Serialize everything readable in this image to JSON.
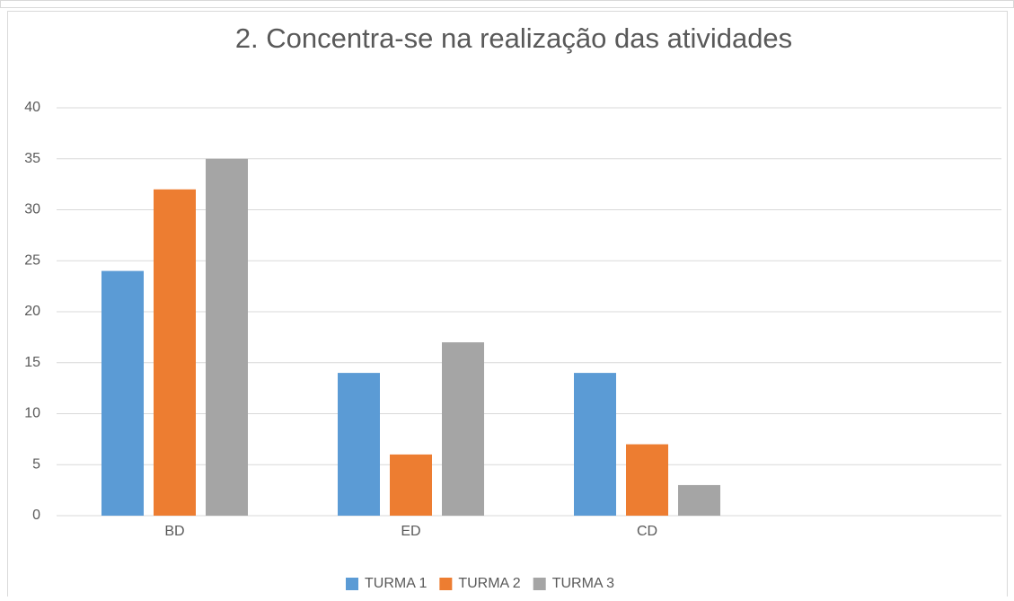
{
  "chart_data": {
    "type": "bar",
    "title": "2. Concentra-se na realização das atividades",
    "categories": [
      "BD",
      "ED",
      "CD",
      null
    ],
    "series": [
      {
        "name": "TURMA 1",
        "color": "#5b9bd5",
        "values": [
          24,
          14,
          14,
          null
        ]
      },
      {
        "name": "TURMA 2",
        "color": "#ed7d31",
        "values": [
          32,
          6,
          7,
          null
        ]
      },
      {
        "name": "TURMA 3",
        "color": "#a5a5a5",
        "values": [
          35,
          17,
          3,
          null
        ]
      }
    ],
    "ylim": [
      0,
      40
    ],
    "yticks": [
      0,
      5,
      10,
      15,
      20,
      25,
      30,
      35,
      40
    ],
    "grid": true,
    "legend": "bottom"
  }
}
